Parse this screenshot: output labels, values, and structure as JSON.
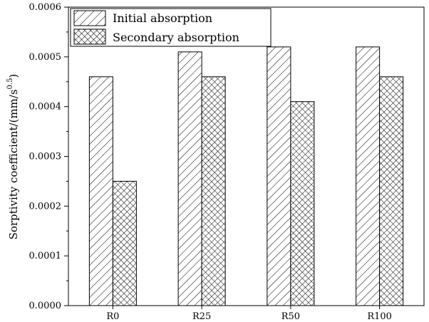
{
  "chart_data": {
    "type": "bar",
    "categories": [
      "R0",
      "R25",
      "R50",
      "R100"
    ],
    "series": [
      {
        "name": "Initial absorption",
        "values": [
          0.00046,
          0.00051,
          0.00052,
          0.00052
        ],
        "pattern": "diagonal-hatch"
      },
      {
        "name": "Secondary absorption",
        "values": [
          0.00025,
          0.00046,
          0.00041,
          0.00046
        ],
        "pattern": "cross-hatch"
      }
    ],
    "ylabel_main": "Sorptivity coefficient/(mm/s",
    "ylabel_exp": "0.5",
    "ylabel_close": ")",
    "ylim": [
      0,
      0.0006
    ],
    "yticks": [
      "0.0000",
      "0.0001",
      "0.0002",
      "0.0003",
      "0.0004",
      "0.0005",
      "0.0006"
    ],
    "ytick_values": [
      0,
      0.0001,
      0.0002,
      0.0003,
      0.0004,
      0.0005,
      0.0006
    ],
    "legend_position": "top-left",
    "grid": false,
    "colors": {
      "stroke": "#000000",
      "background": "#ffffff"
    }
  }
}
